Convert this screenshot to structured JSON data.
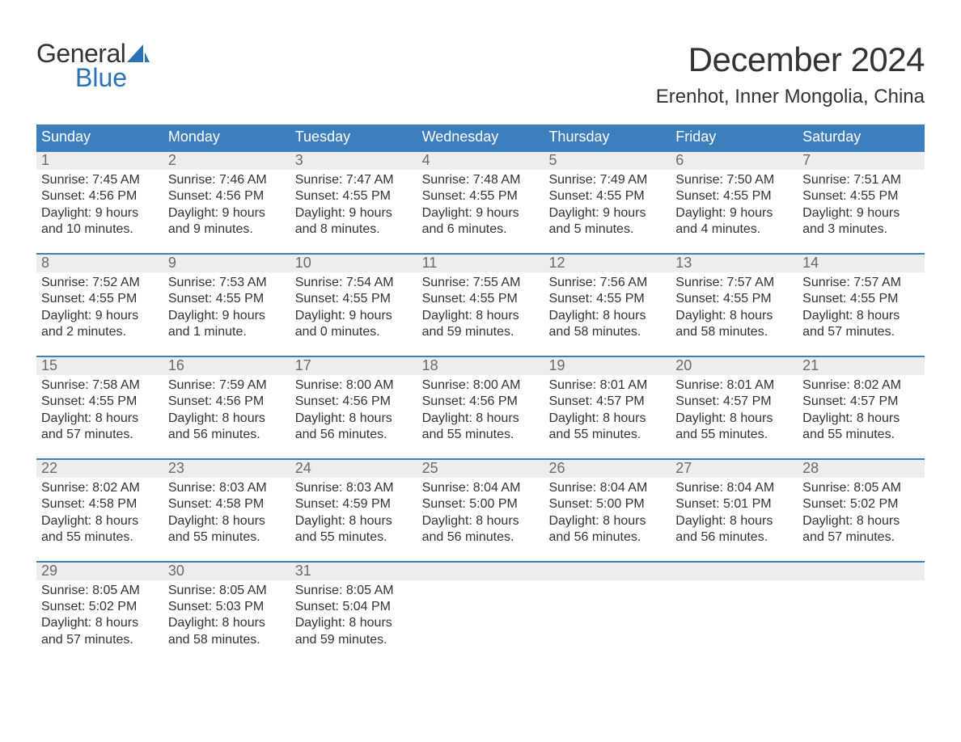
{
  "logo": {
    "text1": "General",
    "text2": "Blue"
  },
  "header": {
    "title": "December 2024",
    "location": "Erenhot, Inner Mongolia, China"
  },
  "colors": {
    "header_bg": "#3d7ebd",
    "header_text": "#ffffff",
    "daynum_bg": "#ededed",
    "daynum_text": "#6a6a6a",
    "week_border": "#3d7ebd",
    "body_text": "#333333",
    "logo_accent": "#2b72b8",
    "background": "#ffffff"
  },
  "weekdays": [
    "Sunday",
    "Monday",
    "Tuesday",
    "Wednesday",
    "Thursday",
    "Friday",
    "Saturday"
  ],
  "weeks": [
    [
      {
        "n": "1",
        "sunrise": "7:45 AM",
        "sunset": "4:56 PM",
        "dl1": "Daylight: 9 hours",
        "dl2": "and 10 minutes."
      },
      {
        "n": "2",
        "sunrise": "7:46 AM",
        "sunset": "4:56 PM",
        "dl1": "Daylight: 9 hours",
        "dl2": "and 9 minutes."
      },
      {
        "n": "3",
        "sunrise": "7:47 AM",
        "sunset": "4:55 PM",
        "dl1": "Daylight: 9 hours",
        "dl2": "and 8 minutes."
      },
      {
        "n": "4",
        "sunrise": "7:48 AM",
        "sunset": "4:55 PM",
        "dl1": "Daylight: 9 hours",
        "dl2": "and 6 minutes."
      },
      {
        "n": "5",
        "sunrise": "7:49 AM",
        "sunset": "4:55 PM",
        "dl1": "Daylight: 9 hours",
        "dl2": "and 5 minutes."
      },
      {
        "n": "6",
        "sunrise": "7:50 AM",
        "sunset": "4:55 PM",
        "dl1": "Daylight: 9 hours",
        "dl2": "and 4 minutes."
      },
      {
        "n": "7",
        "sunrise": "7:51 AM",
        "sunset": "4:55 PM",
        "dl1": "Daylight: 9 hours",
        "dl2": "and 3 minutes."
      }
    ],
    [
      {
        "n": "8",
        "sunrise": "7:52 AM",
        "sunset": "4:55 PM",
        "dl1": "Daylight: 9 hours",
        "dl2": "and 2 minutes."
      },
      {
        "n": "9",
        "sunrise": "7:53 AM",
        "sunset": "4:55 PM",
        "dl1": "Daylight: 9 hours",
        "dl2": "and 1 minute."
      },
      {
        "n": "10",
        "sunrise": "7:54 AM",
        "sunset": "4:55 PM",
        "dl1": "Daylight: 9 hours",
        "dl2": "and 0 minutes."
      },
      {
        "n": "11",
        "sunrise": "7:55 AM",
        "sunset": "4:55 PM",
        "dl1": "Daylight: 8 hours",
        "dl2": "and 59 minutes."
      },
      {
        "n": "12",
        "sunrise": "7:56 AM",
        "sunset": "4:55 PM",
        "dl1": "Daylight: 8 hours",
        "dl2": "and 58 minutes."
      },
      {
        "n": "13",
        "sunrise": "7:57 AM",
        "sunset": "4:55 PM",
        "dl1": "Daylight: 8 hours",
        "dl2": "and 58 minutes."
      },
      {
        "n": "14",
        "sunrise": "7:57 AM",
        "sunset": "4:55 PM",
        "dl1": "Daylight: 8 hours",
        "dl2": "and 57 minutes."
      }
    ],
    [
      {
        "n": "15",
        "sunrise": "7:58 AM",
        "sunset": "4:55 PM",
        "dl1": "Daylight: 8 hours",
        "dl2": "and 57 minutes."
      },
      {
        "n": "16",
        "sunrise": "7:59 AM",
        "sunset": "4:56 PM",
        "dl1": "Daylight: 8 hours",
        "dl2": "and 56 minutes."
      },
      {
        "n": "17",
        "sunrise": "8:00 AM",
        "sunset": "4:56 PM",
        "dl1": "Daylight: 8 hours",
        "dl2": "and 56 minutes."
      },
      {
        "n": "18",
        "sunrise": "8:00 AM",
        "sunset": "4:56 PM",
        "dl1": "Daylight: 8 hours",
        "dl2": "and 55 minutes."
      },
      {
        "n": "19",
        "sunrise": "8:01 AM",
        "sunset": "4:57 PM",
        "dl1": "Daylight: 8 hours",
        "dl2": "and 55 minutes."
      },
      {
        "n": "20",
        "sunrise": "8:01 AM",
        "sunset": "4:57 PM",
        "dl1": "Daylight: 8 hours",
        "dl2": "and 55 minutes."
      },
      {
        "n": "21",
        "sunrise": "8:02 AM",
        "sunset": "4:57 PM",
        "dl1": "Daylight: 8 hours",
        "dl2": "and 55 minutes."
      }
    ],
    [
      {
        "n": "22",
        "sunrise": "8:02 AM",
        "sunset": "4:58 PM",
        "dl1": "Daylight: 8 hours",
        "dl2": "and 55 minutes."
      },
      {
        "n": "23",
        "sunrise": "8:03 AM",
        "sunset": "4:58 PM",
        "dl1": "Daylight: 8 hours",
        "dl2": "and 55 minutes."
      },
      {
        "n": "24",
        "sunrise": "8:03 AM",
        "sunset": "4:59 PM",
        "dl1": "Daylight: 8 hours",
        "dl2": "and 55 minutes."
      },
      {
        "n": "25",
        "sunrise": "8:04 AM",
        "sunset": "5:00 PM",
        "dl1": "Daylight: 8 hours",
        "dl2": "and 56 minutes."
      },
      {
        "n": "26",
        "sunrise": "8:04 AM",
        "sunset": "5:00 PM",
        "dl1": "Daylight: 8 hours",
        "dl2": "and 56 minutes."
      },
      {
        "n": "27",
        "sunrise": "8:04 AM",
        "sunset": "5:01 PM",
        "dl1": "Daylight: 8 hours",
        "dl2": "and 56 minutes."
      },
      {
        "n": "28",
        "sunrise": "8:05 AM",
        "sunset": "5:02 PM",
        "dl1": "Daylight: 8 hours",
        "dl2": "and 57 minutes."
      }
    ],
    [
      {
        "n": "29",
        "sunrise": "8:05 AM",
        "sunset": "5:02 PM",
        "dl1": "Daylight: 8 hours",
        "dl2": "and 57 minutes."
      },
      {
        "n": "30",
        "sunrise": "8:05 AM",
        "sunset": "5:03 PM",
        "dl1": "Daylight: 8 hours",
        "dl2": "and 58 minutes."
      },
      {
        "n": "31",
        "sunrise": "8:05 AM",
        "sunset": "5:04 PM",
        "dl1": "Daylight: 8 hours",
        "dl2": "and 59 minutes."
      },
      {
        "empty": true
      },
      {
        "empty": true
      },
      {
        "empty": true
      },
      {
        "empty": true
      }
    ]
  ],
  "labels": {
    "sunrise": "Sunrise: ",
    "sunset": "Sunset: "
  }
}
